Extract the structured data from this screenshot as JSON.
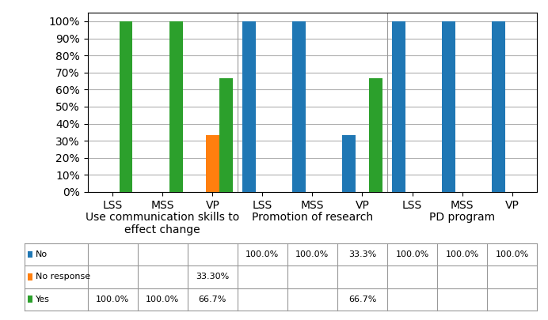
{
  "chart_data": {
    "type": "bar",
    "categories": [
      "LSS",
      "MSS",
      "VP",
      "LSS",
      "MSS",
      "VP",
      "LSS",
      "MSS",
      "VP"
    ],
    "group_labels": [
      "Use communication skills to\neffect change",
      "Promotion of research",
      "PD program"
    ],
    "series": [
      {
        "name": "No",
        "values": [
          0,
          0,
          0,
          100.0,
          100.0,
          33.3,
          100.0,
          100.0,
          100.0
        ],
        "value_labels": [
          null,
          null,
          null,
          "100.0%",
          "100.0%",
          "33.3%",
          "100.0%",
          "100.0%",
          "100.0%"
        ]
      },
      {
        "name": "No response",
        "values": [
          0,
          0,
          33.3,
          0,
          0,
          0,
          0,
          0,
          0
        ],
        "value_labels": [
          null,
          null,
          "33.30%",
          null,
          null,
          null,
          null,
          null,
          null
        ]
      },
      {
        "name": "Yes",
        "values": [
          100.0,
          100.0,
          66.7,
          0,
          0,
          66.7,
          0,
          0,
          0
        ],
        "value_labels": [
          "100.0%",
          "100.0%",
          "66.7%",
          null,
          null,
          "66.7%",
          null,
          null,
          null
        ]
      }
    ],
    "ylim": [
      0,
      105
    ],
    "yticks": [
      {
        "value": 0,
        "label": "0%"
      },
      {
        "value": 10,
        "label": "10%"
      },
      {
        "value": 20,
        "label": "20%"
      },
      {
        "value": 30,
        "label": "30%"
      },
      {
        "value": 40,
        "label": "40%"
      },
      {
        "value": 50,
        "label": "50%"
      },
      {
        "value": 60,
        "label": "60%"
      },
      {
        "value": 70,
        "label": "70%"
      },
      {
        "value": 80,
        "label": "80%"
      },
      {
        "value": 90,
        "label": "90%"
      },
      {
        "value": 100,
        "label": "100%"
      }
    ],
    "grid": true,
    "data_labels": true
  }
}
